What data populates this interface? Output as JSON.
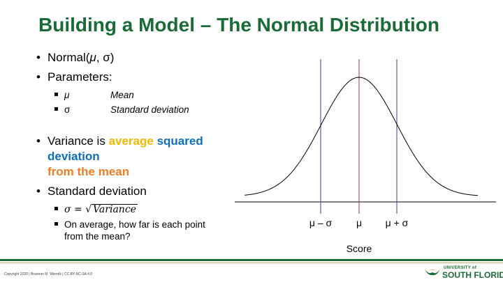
{
  "slide": {
    "title": "Building a Model – The Normal Distribution",
    "bullets": {
      "normal_prefix": "Normal(",
      "normal_mu": "μ",
      "normal_suffix": ", σ)",
      "parameters": "Parameters:",
      "param_mu_symbol": "μ",
      "param_mu_def": "Mean",
      "param_sigma_symbol": "σ",
      "param_sigma_def": "Standard deviation",
      "variance_prefix": "Variance is ",
      "variance_average": "average",
      "variance_squared_deviation": "squared deviation",
      "variance_from_mean": "from the mean",
      "std_dev": "Standard deviation",
      "formula_lhs": "σ = √",
      "formula_radicand": "Variance",
      "on_average": "On average, how far is each point from the mean?"
    },
    "colors": {
      "title": "#1a6b35",
      "average": "#f5b800",
      "squared_deviation": "#0b6fbd",
      "from_mean": "#ee7d23",
      "mean_line": "#a0343a",
      "sd_lines": "#3b3b8f"
    }
  },
  "diagram": {
    "type": "normal-curve",
    "mean_line_label": "μ",
    "minus_sigma_label": "μ – σ",
    "plus_sigma_label": "μ + σ",
    "axis_label": "Score"
  },
  "footer": {
    "copyright": "Copyright 2020 | Brannon M. Wiernik | CC BY-NC-SA 4.0",
    "logo_small": "UNIVERSITY of",
    "logo_big": "SOUTH FLORIDA",
    "logo_icon": "bull-horns-icon"
  }
}
